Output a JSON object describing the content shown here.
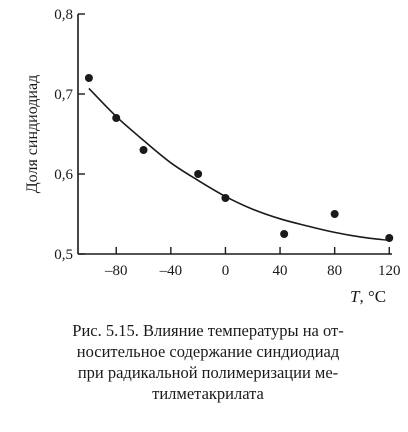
{
  "chart_data": {
    "type": "scatter",
    "ylabel": "Доля синдиодиад",
    "xlabel_italic": "T",
    "xlabel_unit": ", °C",
    "xlim": [
      -108,
      122
    ],
    "ylim": [
      0.5,
      0.8
    ],
    "x_ticks": [
      -80,
      -40,
      0,
      40,
      80,
      120
    ],
    "x_tick_labels": [
      "–80",
      "–40",
      "0",
      "40",
      "80",
      "120"
    ],
    "y_ticks": [
      0.5,
      0.6,
      0.7,
      0.8
    ],
    "y_tick_labels": [
      "0,5",
      "0,6",
      "0,7",
      "0,8"
    ],
    "points": [
      {
        "x": -100,
        "y": 0.72
      },
      {
        "x": -80,
        "y": 0.67
      },
      {
        "x": -60,
        "y": 0.63
      },
      {
        "x": -20,
        "y": 0.6
      },
      {
        "x": 0,
        "y": 0.57
      },
      {
        "x": 43,
        "y": 0.525
      },
      {
        "x": 80,
        "y": 0.55
      },
      {
        "x": 120,
        "y": 0.52
      }
    ],
    "fit_curve": [
      {
        "x": -100,
        "y": 0.707
      },
      {
        "x": -80,
        "y": 0.672
      },
      {
        "x": -60,
        "y": 0.642
      },
      {
        "x": -40,
        "y": 0.614
      },
      {
        "x": -20,
        "y": 0.592
      },
      {
        "x": 0,
        "y": 0.572
      },
      {
        "x": 20,
        "y": 0.556
      },
      {
        "x": 40,
        "y": 0.544
      },
      {
        "x": 60,
        "y": 0.535
      },
      {
        "x": 80,
        "y": 0.527
      },
      {
        "x": 100,
        "y": 0.521
      },
      {
        "x": 120,
        "y": 0.517
      }
    ],
    "grid": false
  },
  "caption": {
    "lines": [
      "Рис. 5.15. Влияние температуры на от-",
      "носительное содержание синдиодиад",
      "при радикальной полимеризации ме-",
      "тилметакрилата"
    ]
  }
}
